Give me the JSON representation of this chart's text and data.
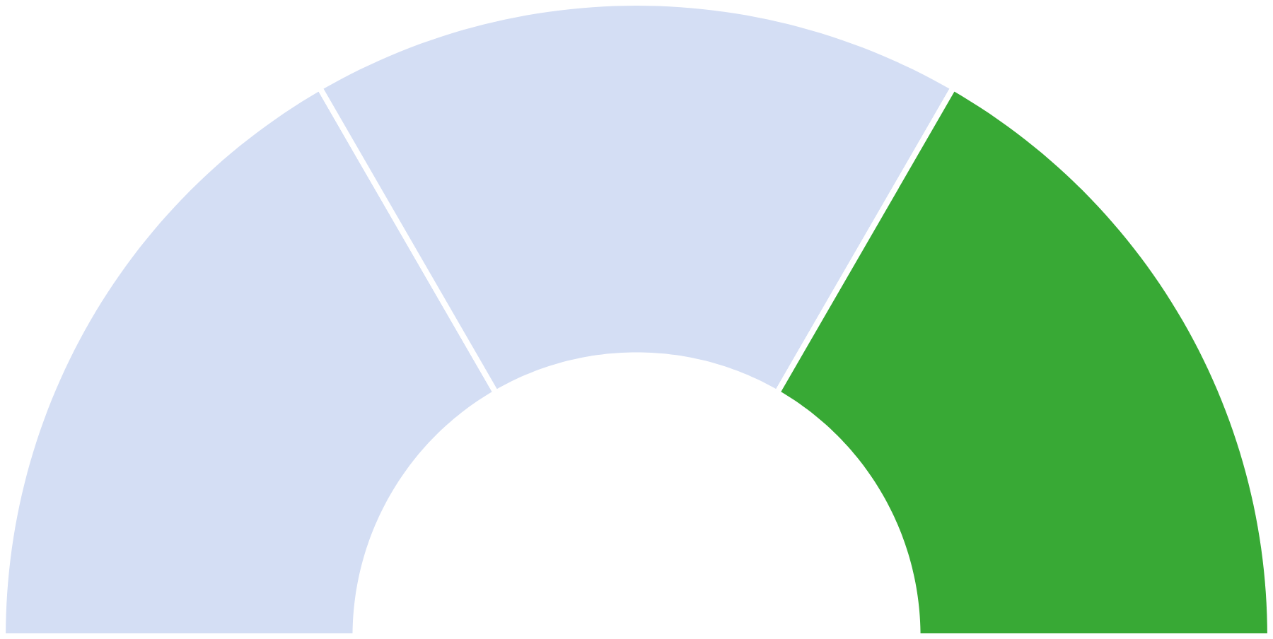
{
  "chart_data": {
    "type": "donut",
    "categories": [
      null,
      null,
      null
    ],
    "values": [
      33.33,
      33.34,
      33.33
    ],
    "colors": [
      "#d4def4",
      "#d4def4",
      "#38a935"
    ]
  }
}
